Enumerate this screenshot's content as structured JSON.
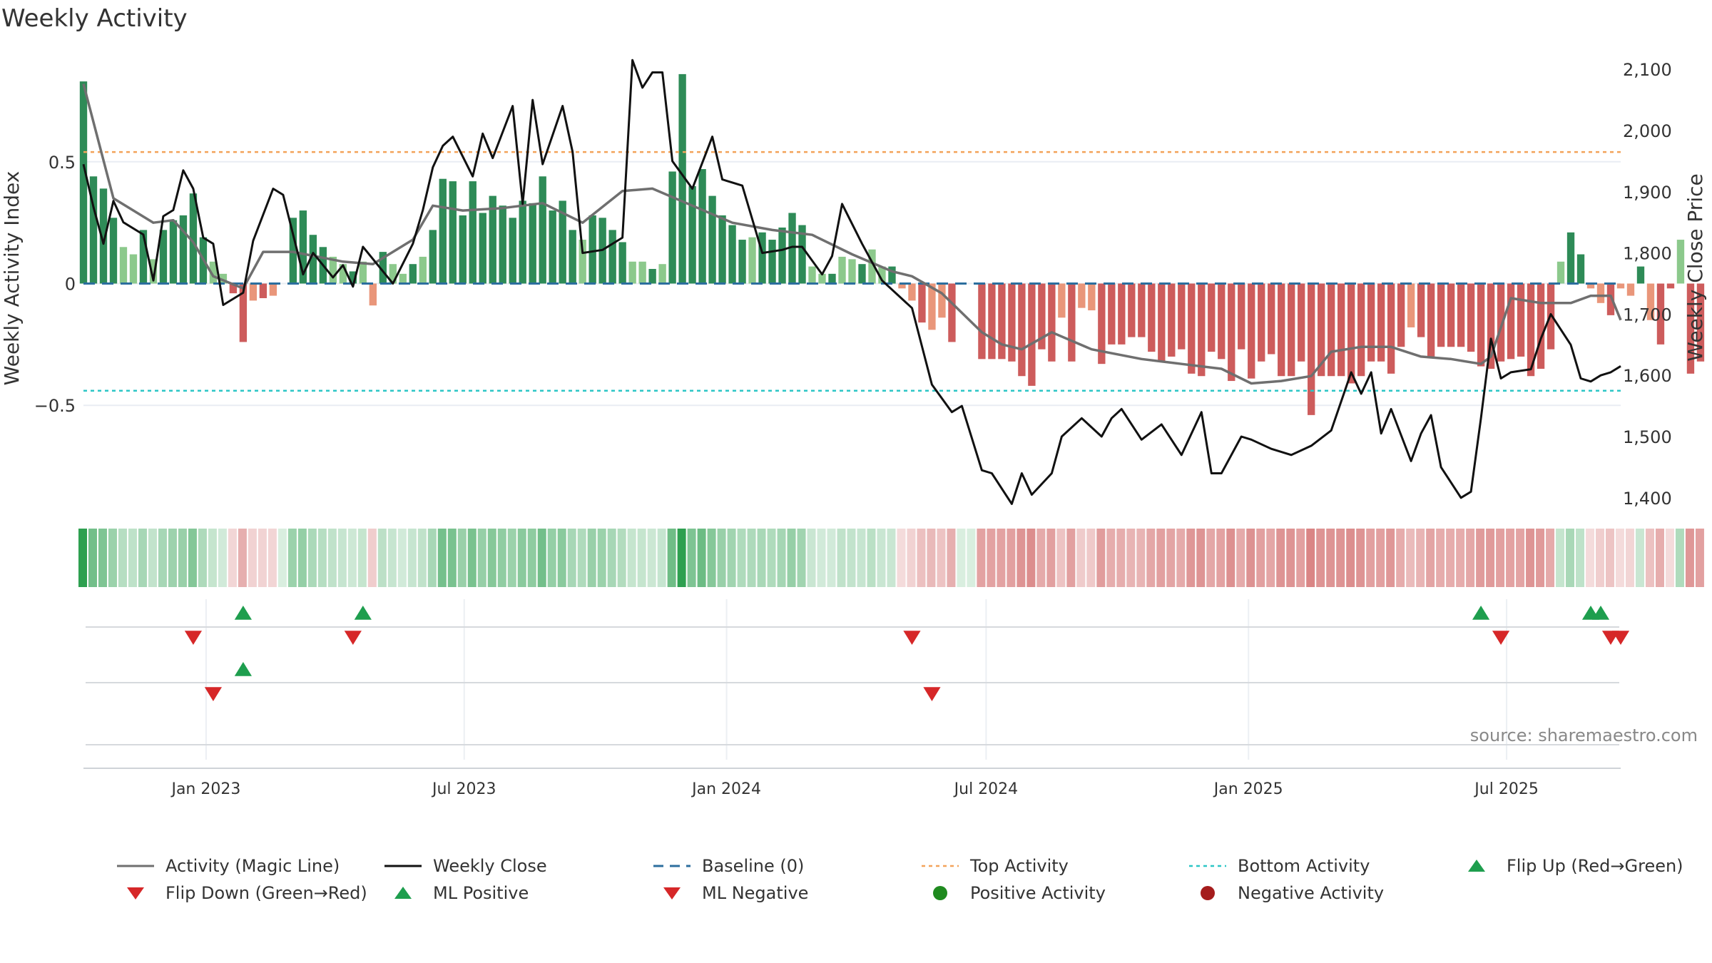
{
  "title": "Weekly Activity",
  "source": "source: sharemaestro.com",
  "colors": {
    "ma_line": "#6f6f6f",
    "close_line": "#111111",
    "baseline": "#2c6e9e",
    "top_line": "#f3a35a",
    "bottom_line": "#2cc6c6",
    "green_dark": "#2e8b57",
    "green_light": "#8cc98c",
    "red_dark": "#cd5c5c",
    "red_light": "#e9967a",
    "flip_up": "#1e9e4e",
    "flip_down": "#d62728",
    "pos_dot": "#1f8a1f",
    "neg_dot": "#a51c1c"
  },
  "legend": [
    {
      "label": "Activity (Magic Line)",
      "symbol": "solid-grey-line"
    },
    {
      "label": "Weekly Close",
      "symbol": "solid-black-line"
    },
    {
      "label": "Baseline (0)",
      "symbol": "dashed-blue-line"
    },
    {
      "label": "Top Activity",
      "symbol": "dotted-orange-line"
    },
    {
      "label": "Bottom Activity",
      "symbol": "dotted-cyan-line"
    },
    {
      "label": "Flip Up (Red→Green)",
      "symbol": "green-triangle-up"
    },
    {
      "label": "Flip Down (Green→Red)",
      "symbol": "red-triangle-down"
    },
    {
      "label": "ML Positive",
      "symbol": "green-triangle-up"
    },
    {
      "label": "ML Negative",
      "symbol": "red-triangle-down"
    },
    {
      "label": "Positive Activity",
      "symbol": "green-dot"
    },
    {
      "label": "Negative Activity",
      "symbol": "dark-red-dot"
    }
  ],
  "chart_data": {
    "type": "bar",
    "title": "Weekly Activity",
    "xlabel": "",
    "ylabel": "Weekly Activity Index",
    "y2label": "Weekly Close Price",
    "ylim": [
      -0.93,
      0.93
    ],
    "y2lim": [
      1380,
      2120
    ],
    "yticks": [
      {
        "v": 0.5,
        "label": "0.5"
      },
      {
        "v": 0,
        "label": "0"
      },
      {
        "v": -0.5,
        "label": "−0.5"
      }
    ],
    "y2ticks": [
      {
        "v": 1400,
        "label": "1,400"
      },
      {
        "v": 1500,
        "label": "1,500"
      },
      {
        "v": 1600,
        "label": "1,600"
      },
      {
        "v": 1700,
        "label": "1,700"
      },
      {
        "v": 1800,
        "label": "1,800"
      },
      {
        "v": 1900,
        "label": "1,900"
      },
      {
        "v": 2000,
        "label": "2,000"
      },
      {
        "v": 2100,
        "label": "2,100"
      }
    ],
    "x_start": "2022-10-07",
    "x_end": "2025-09-19",
    "xticks": [
      {
        "date": "2023-01-01",
        "label": "Jan 2023"
      },
      {
        "date": "2023-07-01",
        "label": "Jul 2023"
      },
      {
        "date": "2024-01-01",
        "label": "Jan 2024"
      },
      {
        "date": "2024-07-01",
        "label": "Jul 2024"
      },
      {
        "date": "2025-01-01",
        "label": "Jan 2025"
      },
      {
        "date": "2025-07-01",
        "label": "Jul 2025"
      }
    ],
    "reference_lines": {
      "baseline": 0,
      "top_activity": 0.54,
      "bottom_activity": -0.44
    },
    "legend_position": "bottom",
    "grid": true,
    "series": [
      {
        "name": "Activity (Magic Line)",
        "type": "line",
        "x": [
          "2022-10-07",
          "2022-10-28",
          "2022-11-25",
          "2022-12-09",
          "2022-12-23",
          "2023-01-06",
          "2023-01-27",
          "2023-02-10",
          "2023-03-03",
          "2023-04-07",
          "2023-04-28",
          "2023-05-26",
          "2023-06-09",
          "2023-06-30",
          "2023-07-28",
          "2023-08-25",
          "2023-09-22",
          "2023-10-20",
          "2023-11-10",
          "2023-12-08",
          "2024-01-05",
          "2024-02-02",
          "2024-03-01",
          "2024-03-29",
          "2024-04-26",
          "2024-05-10",
          "2024-05-31",
          "2024-06-14",
          "2024-06-28",
          "2024-07-12",
          "2024-07-26",
          "2024-08-16",
          "2024-09-13",
          "2024-10-18",
          "2024-11-15",
          "2024-12-13",
          "2025-01-03",
          "2025-01-24",
          "2025-02-14",
          "2025-02-28",
          "2025-03-21",
          "2025-04-11",
          "2025-05-02",
          "2025-05-23",
          "2025-06-13",
          "2025-06-20",
          "2025-07-04",
          "2025-07-25",
          "2025-08-15",
          "2025-08-29",
          "2025-09-12",
          "2025-09-19"
        ],
        "values": [
          0.82,
          0.35,
          0.25,
          0.26,
          0.17,
          0.03,
          -0.02,
          0.13,
          0.13,
          0.09,
          0.08,
          0.18,
          0.32,
          0.3,
          0.31,
          0.33,
          0.25,
          0.38,
          0.39,
          0.32,
          0.25,
          0.22,
          0.2,
          0.12,
          0.05,
          0.03,
          -0.04,
          -0.12,
          -0.2,
          -0.25,
          -0.27,
          -0.2,
          -0.27,
          -0.31,
          -0.33,
          -0.35,
          -0.41,
          -0.4,
          -0.38,
          -0.28,
          -0.26,
          -0.26,
          -0.3,
          -0.31,
          -0.33,
          -0.3,
          -0.06,
          -0.08,
          -0.08,
          -0.05,
          -0.05,
          -0.15
        ]
      },
      {
        "name": "Weekly Close",
        "type": "line",
        "x": [
          "2022-10-07",
          "2022-10-14",
          "2022-10-21",
          "2022-10-28",
          "2022-11-04",
          "2022-11-18",
          "2022-11-25",
          "2022-12-02",
          "2022-12-09",
          "2022-12-16",
          "2022-12-23",
          "2022-12-30",
          "2023-01-06",
          "2023-01-13",
          "2023-01-27",
          "2023-02-03",
          "2023-02-17",
          "2023-02-24",
          "2023-03-10",
          "2023-03-17",
          "2023-03-31",
          "2023-04-07",
          "2023-04-14",
          "2023-04-21",
          "2023-05-12",
          "2023-05-26",
          "2023-06-02",
          "2023-06-09",
          "2023-06-16",
          "2023-06-23",
          "2023-07-07",
          "2023-07-14",
          "2023-07-21",
          "2023-08-04",
          "2023-08-11",
          "2023-08-18",
          "2023-08-25",
          "2023-09-08",
          "2023-09-15",
          "2023-09-22",
          "2023-10-06",
          "2023-10-20",
          "2023-10-27",
          "2023-11-03",
          "2023-11-10",
          "2023-11-17",
          "2023-11-24",
          "2023-12-08",
          "2023-12-22",
          "2023-12-29",
          "2024-01-12",
          "2024-01-26",
          "2024-02-09",
          "2024-02-16",
          "2024-02-23",
          "2024-03-08",
          "2024-03-15",
          "2024-03-22",
          "2024-04-05",
          "2024-04-19",
          "2024-05-10",
          "2024-05-24",
          "2024-06-07",
          "2024-06-14",
          "2024-06-28",
          "2024-07-05",
          "2024-07-19",
          "2024-07-26",
          "2024-08-02",
          "2024-08-16",
          "2024-08-23",
          "2024-09-06",
          "2024-09-20",
          "2024-09-27",
          "2024-10-04",
          "2024-10-18",
          "2024-11-01",
          "2024-11-15",
          "2024-11-29",
          "2024-12-06",
          "2024-12-13",
          "2024-12-27",
          "2025-01-03",
          "2025-01-17",
          "2025-01-31",
          "2025-02-14",
          "2025-02-28",
          "2025-03-14",
          "2025-03-21",
          "2025-03-28",
          "2025-04-04",
          "2025-04-11",
          "2025-04-25",
          "2025-05-02",
          "2025-05-09",
          "2025-05-16",
          "2025-05-30",
          "2025-06-06",
          "2025-06-13",
          "2025-06-20",
          "2025-06-27",
          "2025-07-04",
          "2025-07-18",
          "2025-07-25",
          "2025-08-01",
          "2025-08-15",
          "2025-08-22",
          "2025-08-29",
          "2025-09-05",
          "2025-09-12",
          "2025-09-19"
        ],
        "values": [
          1945,
          1875,
          1815,
          1885,
          1850,
          1830,
          1755,
          1860,
          1870,
          1935,
          1905,
          1825,
          1815,
          1715,
          1735,
          1820,
          1905,
          1895,
          1765,
          1800,
          1760,
          1780,
          1745,
          1810,
          1750,
          1815,
          1870,
          1940,
          1975,
          1990,
          1925,
          1995,
          1955,
          2040,
          1880,
          2050,
          1945,
          2040,
          1965,
          1800,
          1805,
          1825,
          2115,
          2070,
          2095,
          2095,
          1950,
          1905,
          1990,
          1920,
          1910,
          1800,
          1805,
          1810,
          1810,
          1765,
          1795,
          1880,
          1815,
          1755,
          1710,
          1585,
          1540,
          1550,
          1445,
          1440,
          1390,
          1440,
          1405,
          1440,
          1500,
          1530,
          1500,
          1530,
          1545,
          1495,
          1520,
          1470,
          1540,
          1440,
          1440,
          1500,
          1495,
          1480,
          1470,
          1485,
          1510,
          1605,
          1570,
          1605,
          1505,
          1545,
          1460,
          1505,
          1535,
          1450,
          1400,
          1410,
          1530,
          1660,
          1595,
          1605,
          1610,
          1660,
          1700,
          1650,
          1595,
          1590,
          1600,
          1605,
          1615
        ]
      }
    ],
    "activity_bars": {
      "start": "2022-10-07",
      "interval_days": 7,
      "values": [
        0.83,
        0.44,
        0.39,
        0.27,
        0.15,
        0.12,
        0.22,
        0.1,
        0.22,
        0.26,
        0.28,
        0.37,
        0.19,
        0.09,
        0.04,
        -0.04,
        -0.24,
        -0.07,
        -0.06,
        -0.05,
        0.0,
        0.27,
        0.3,
        0.2,
        0.15,
        0.11,
        0.08,
        0.05,
        0.09,
        -0.09,
        0.13,
        0.08,
        0.04,
        0.08,
        0.11,
        0.22,
        0.43,
        0.42,
        0.28,
        0.42,
        0.29,
        0.36,
        0.32,
        0.27,
        0.34,
        0.33,
        0.44,
        0.3,
        0.34,
        0.22,
        0.18,
        0.28,
        0.27,
        0.22,
        0.17,
        0.09,
        0.09,
        0.06,
        0.08,
        0.46,
        0.86,
        0.4,
        0.47,
        0.36,
        0.28,
        0.24,
        0.18,
        0.19,
        0.21,
        0.18,
        0.23,
        0.29,
        0.24,
        0.07,
        0.04,
        0.04,
        0.11,
        0.1,
        0.08,
        0.14,
        0.07,
        0.07,
        -0.02,
        -0.07,
        -0.16,
        -0.19,
        -0.14,
        -0.24,
        0.0,
        0.0,
        -0.31,
        -0.31,
        -0.31,
        -0.32,
        -0.38,
        -0.42,
        -0.27,
        -0.32,
        -0.14,
        -0.32,
        -0.1,
        -0.11,
        -0.33,
        -0.25,
        -0.25,
        -0.22,
        -0.22,
        -0.28,
        -0.32,
        -0.3,
        -0.27,
        -0.37,
        -0.38,
        -0.28,
        -0.31,
        -0.4,
        -0.27,
        -0.39,
        -0.32,
        -0.29,
        -0.38,
        -0.38,
        -0.32,
        -0.54,
        -0.38,
        -0.38,
        -0.38,
        -0.41,
        -0.38,
        -0.32,
        -0.32,
        -0.37,
        -0.26,
        -0.18,
        -0.22,
        -0.3,
        -0.26,
        -0.26,
        -0.26,
        -0.28,
        -0.34,
        -0.35,
        -0.32,
        -0.31,
        -0.3,
        -0.38,
        -0.35,
        -0.27,
        0.09,
        0.21,
        0.12,
        -0.02,
        -0.08,
        -0.13,
        -0.02,
        -0.05,
        0.07,
        -0.15,
        -0.25,
        -0.02,
        0.18,
        -0.37,
        -0.32
      ]
    },
    "signals": {
      "flip_up": [
        "2023-01-27",
        "2023-04-21",
        "2025-06-13",
        "2025-08-29",
        "2025-09-05"
      ],
      "flip_down": [
        "2022-12-23",
        "2023-04-14",
        "2024-05-10",
        "2025-06-27",
        "2025-09-12",
        "2025-09-19"
      ],
      "ml_positive": [
        "2023-01-27"
      ],
      "ml_negative": [
        "2023-01-06",
        "2024-05-24"
      ]
    }
  }
}
